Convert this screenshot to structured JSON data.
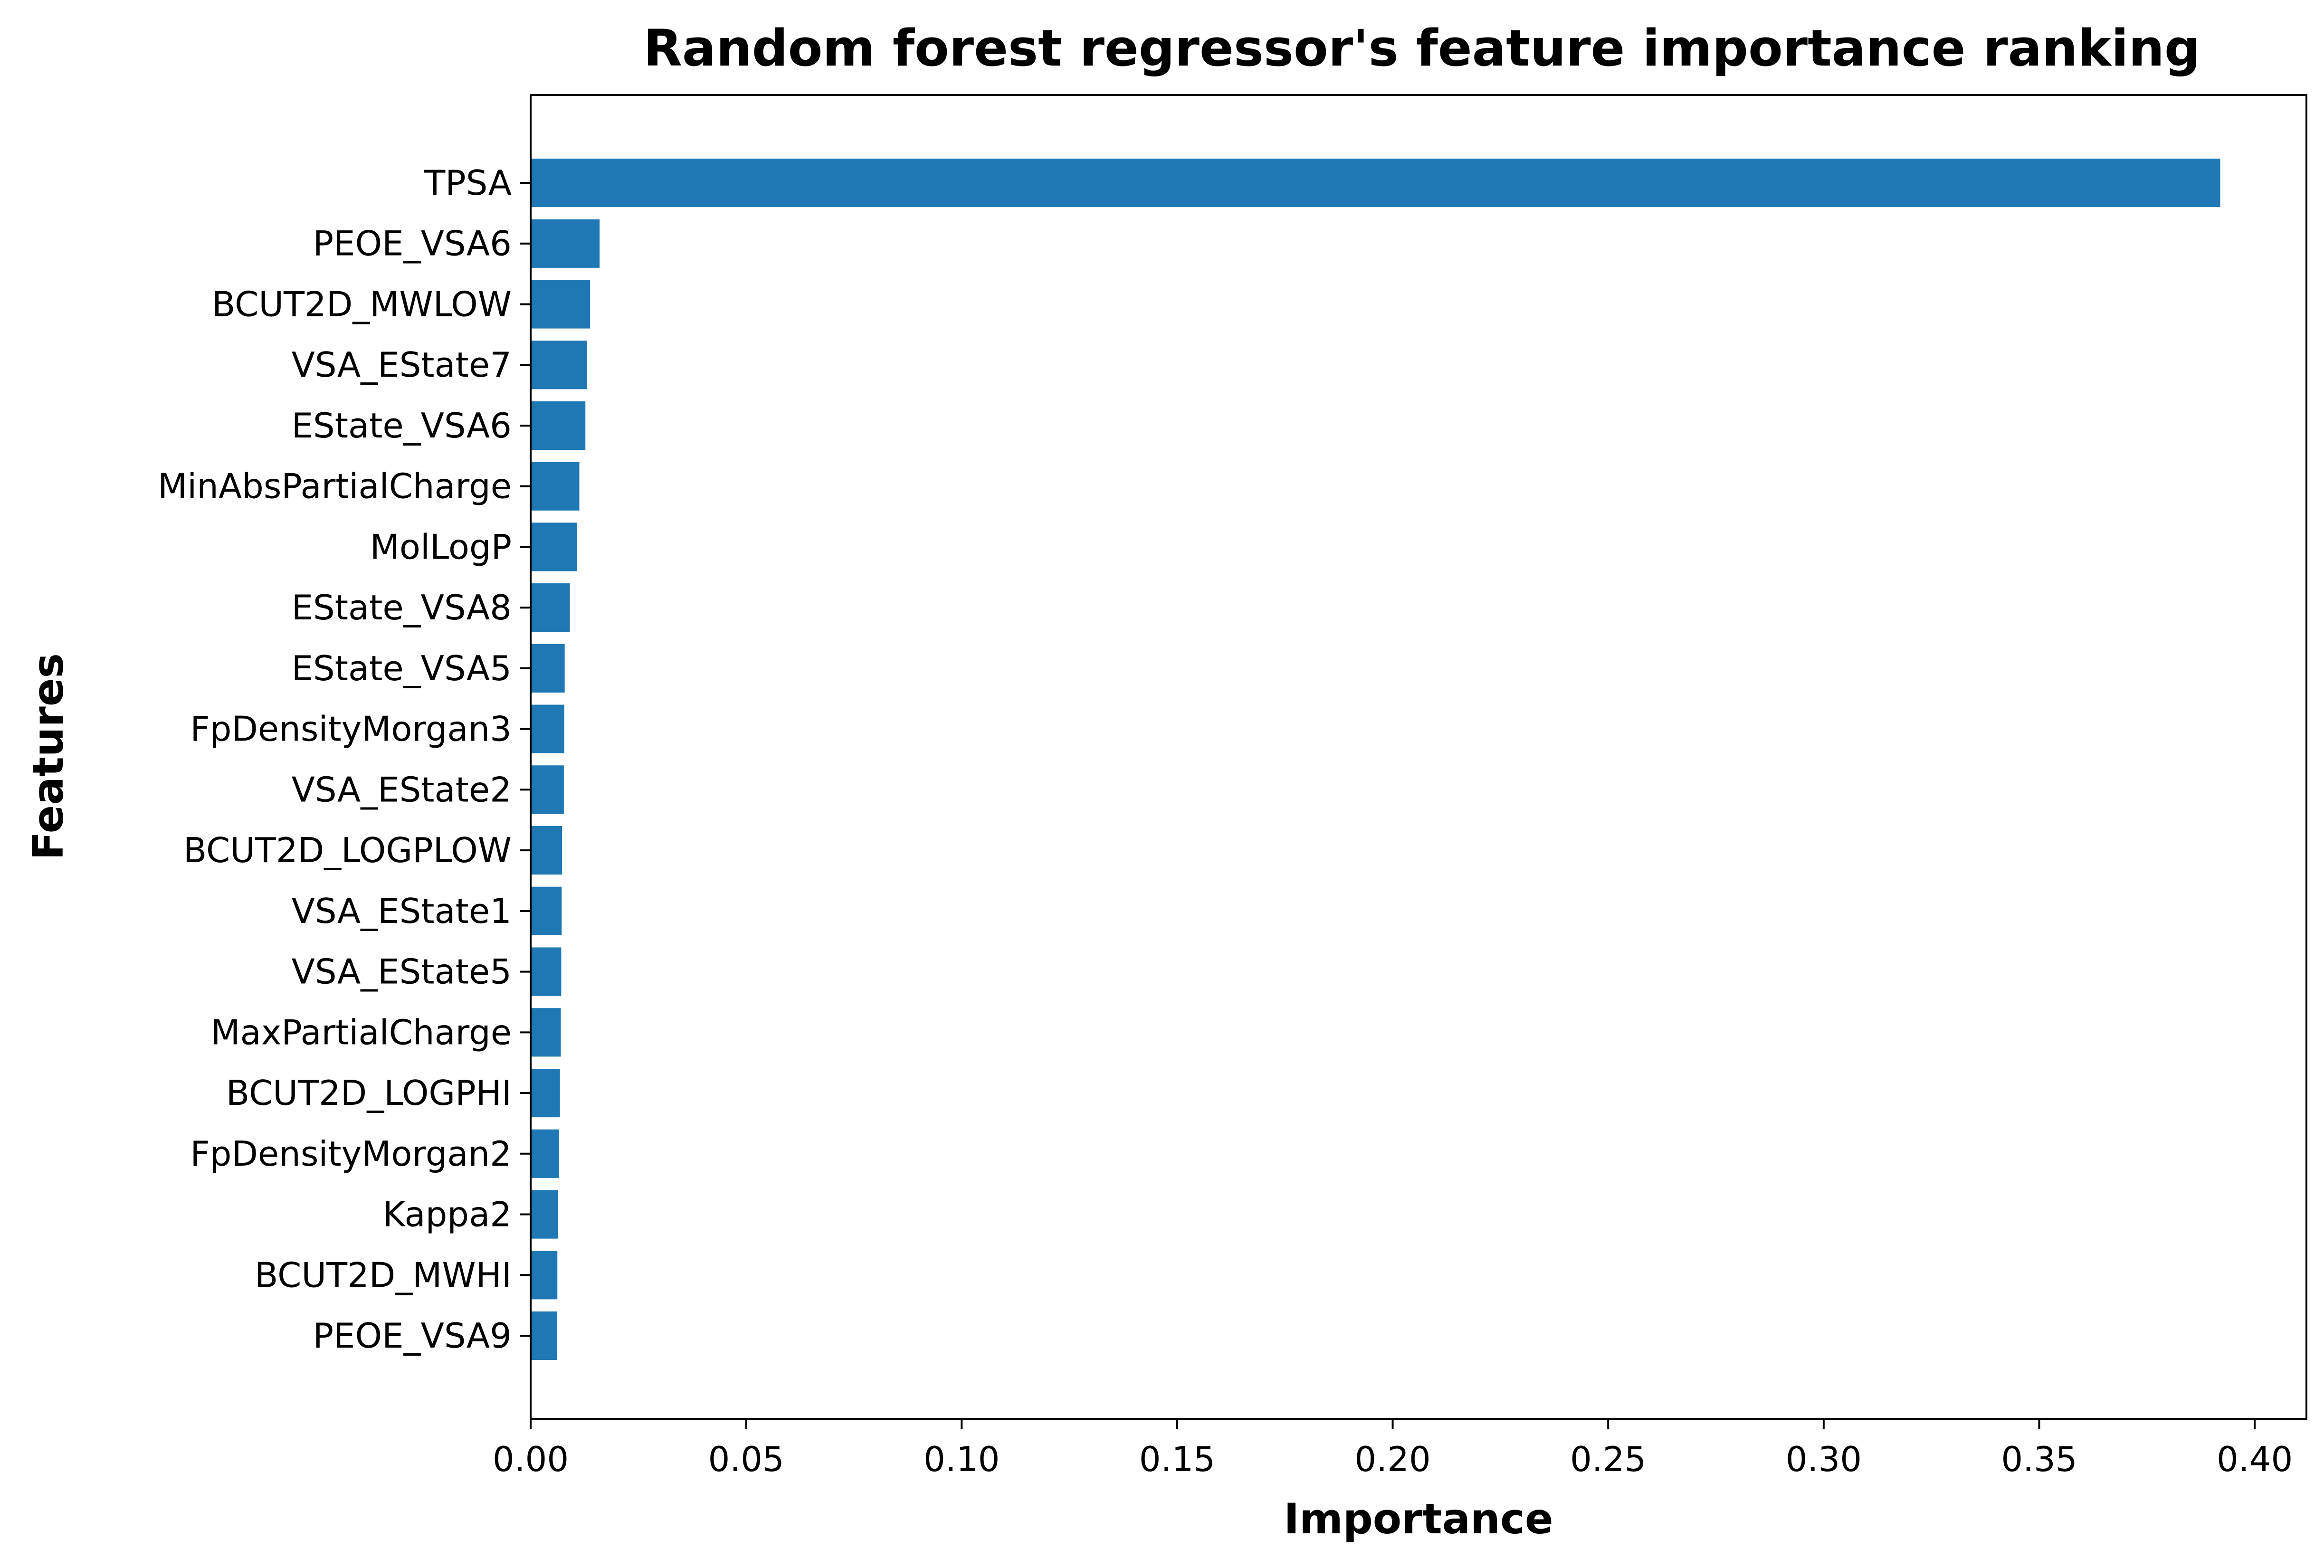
{
  "chart_data": {
    "type": "bar",
    "orientation": "horizontal",
    "title": "Random forest regressor's feature importance ranking",
    "xlabel": "Importance",
    "ylabel": "Features",
    "categories": [
      "TPSA",
      "PEOE_VSA6",
      "BCUT2D_MWLOW",
      "VSA_EState7",
      "EState_VSA6",
      "MinAbsPartialCharge",
      "MolLogP",
      "EState_VSA8",
      "EState_VSA5",
      "FpDensityMorgan3",
      "VSA_EState2",
      "BCUT2D_LOGPLOW",
      "VSA_EState1",
      "VSA_EState5",
      "MaxPartialCharge",
      "BCUT2D_LOGPHI",
      "FpDensityMorgan2",
      "Kappa2",
      "BCUT2D_MWHI",
      "PEOE_VSA9"
    ],
    "values": [
      0.392,
      0.016,
      0.0138,
      0.0131,
      0.0127,
      0.0113,
      0.0108,
      0.0091,
      0.0079,
      0.0078,
      0.0077,
      0.0073,
      0.0072,
      0.0071,
      0.007,
      0.0068,
      0.0066,
      0.0064,
      0.0062,
      0.0061
    ],
    "xlim": [
      0,
      0.412
    ],
    "xticks": [
      "0.00",
      "0.05",
      "0.10",
      "0.15",
      "0.20",
      "0.25",
      "0.30",
      "0.35",
      "0.40"
    ],
    "xtick_values": [
      0,
      0.05,
      0.1,
      0.15,
      0.2,
      0.25,
      0.3,
      0.35,
      0.4
    ],
    "grid": false,
    "colors": {
      "bar": "#1f77b4",
      "axis": "#000000"
    }
  }
}
